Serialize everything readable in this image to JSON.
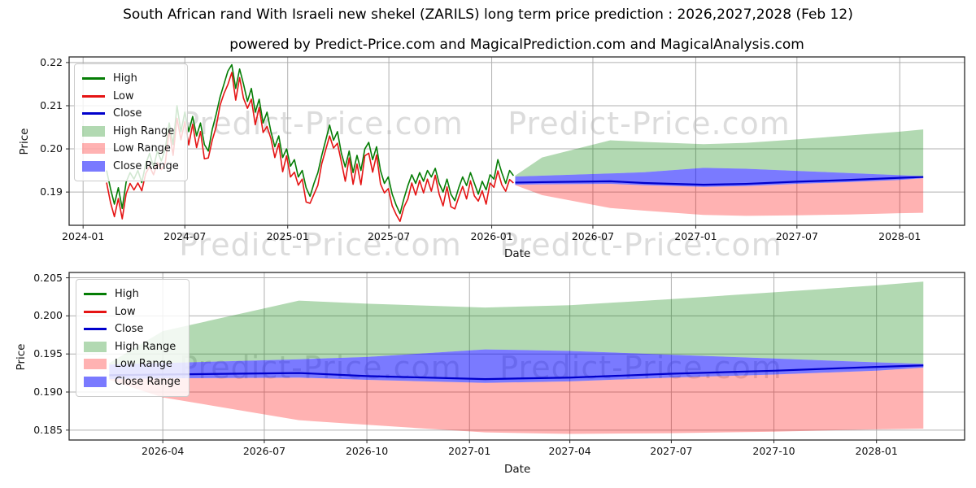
{
  "figure": {
    "title": "South African rand With Israeli new shekel (ZARILS) long term price prediction : 2026,2027,2028 (Feb 12)",
    "subtitle": "powered by Predict-Price.com and MagicalPrediction.com and MagicalAnalysis.com",
    "watermark_text": "Predict-Price.com"
  },
  "colors": {
    "high_line": "#057d05",
    "low_line": "#e51414",
    "close_line": "#0000cc",
    "high_range_fill": "rgba(0,128,0,0.30)",
    "low_range_fill": "rgba(255,0,0,0.30)",
    "close_range_fill": "rgba(0,0,255,0.52)",
    "grid": "#b0b0b0",
    "frame": "#2a2a2a",
    "watermark": "rgba(128,128,128,0.28)"
  },
  "legend": {
    "entries": [
      {
        "label": "High",
        "swatch": "line",
        "color_key": "high_line"
      },
      {
        "label": "Low",
        "swatch": "line",
        "color_key": "low_line"
      },
      {
        "label": "Close",
        "swatch": "line",
        "color_key": "close_line"
      },
      {
        "label": "High Range",
        "swatch": "patch",
        "color_key": "high_range_fill"
      },
      {
        "label": "Low Range",
        "swatch": "patch",
        "color_key": "low_range_fill"
      },
      {
        "label": "Close Range",
        "swatch": "patch",
        "color_key": "close_range_fill"
      }
    ]
  },
  "chart_data": [
    {
      "type": "line",
      "name": "history-plus-prediction",
      "xlabel": "Date",
      "ylabel": "Price",
      "x_unit": "days since 2024-01-01",
      "grid": true,
      "xticks": {
        "days": [
          0,
          182,
          366,
          547,
          731,
          912,
          1096,
          1277,
          1461
        ],
        "labels": [
          "2024-01",
          "2024-07",
          "2025-01",
          "2025-07",
          "2026-01",
          "2026-07",
          "2027-01",
          "2027-07",
          "2028-01"
        ]
      },
      "yticks": {
        "values": [
          0.19,
          0.2,
          0.21,
          0.22
        ],
        "labels": [
          "0.19",
          "0.20",
          "0.21",
          "0.22"
        ]
      },
      "x_range_days": [
        -25,
        1577
      ],
      "y_range": [
        0.1823,
        0.2213
      ],
      "history": {
        "start_day": 42,
        "step_days": 7,
        "high": [
          0.195,
          0.1908,
          0.1872,
          0.191,
          0.1862,
          0.1923,
          0.1945,
          0.193,
          0.195,
          0.1922,
          0.1965,
          0.199,
          0.1958,
          0.1995,
          0.1972,
          0.2,
          0.206,
          0.201,
          0.21,
          0.204,
          0.2085,
          0.204,
          0.2075,
          0.203,
          0.206,
          0.201,
          0.1995,
          0.2045,
          0.208,
          0.212,
          0.215,
          0.218,
          0.2195,
          0.214,
          0.2185,
          0.215,
          0.211,
          0.214,
          0.2085,
          0.2115,
          0.206,
          0.2085,
          0.204,
          0.2005,
          0.203,
          0.198,
          0.2,
          0.196,
          0.1975,
          0.1935,
          0.195,
          0.191,
          0.189,
          0.192,
          0.1945,
          0.1985,
          0.202,
          0.2055,
          0.202,
          0.204,
          0.199,
          0.1958,
          0.1995,
          0.1945,
          0.1985,
          0.195,
          0.2,
          0.2015,
          0.1975,
          0.2005,
          0.195,
          0.192,
          0.1935,
          0.1895,
          0.187,
          0.185,
          0.1885,
          0.1915,
          0.194,
          0.192,
          0.1945,
          0.1925,
          0.195,
          0.1935,
          0.1955,
          0.192,
          0.19,
          0.193,
          0.1895,
          0.188,
          0.191,
          0.1935,
          0.1915,
          0.1945,
          0.192,
          0.1895,
          0.1925,
          0.1905,
          0.194,
          0.193,
          0.1975,
          0.1945,
          0.192,
          0.195,
          0.1938
        ],
        "low": [
          0.1922,
          0.1876,
          0.1843,
          0.1885,
          0.1838,
          0.1896,
          0.192,
          0.1905,
          0.1921,
          0.1903,
          0.1943,
          0.1959,
          0.194,
          0.1968,
          0.1952,
          0.1967,
          0.2044,
          0.1985,
          0.2071,
          0.2021,
          0.2063,
          0.2009,
          0.2057,
          0.2003,
          0.204,
          0.1977,
          0.1979,
          0.202,
          0.2051,
          0.2101,
          0.2128,
          0.2149,
          0.2177,
          0.2113,
          0.2165,
          0.2117,
          0.2094,
          0.2115,
          0.2056,
          0.2096,
          0.2038,
          0.2052,
          0.2024,
          0.198,
          0.2012,
          0.1947,
          0.1984,
          0.1935,
          0.1946,
          0.1916,
          0.193,
          0.1877,
          0.1874,
          0.1895,
          0.1916,
          0.1966,
          0.1998,
          0.203,
          0.2002,
          0.2013,
          0.197,
          0.1925,
          0.1979,
          0.1918,
          0.1965,
          0.1917,
          0.1984,
          0.199,
          0.1946,
          0.1986,
          0.1919,
          0.1898,
          0.1908,
          0.1868,
          0.1848,
          0.1832,
          0.1865,
          0.1884,
          0.1921,
          0.1893,
          0.1927,
          0.1898,
          0.193,
          0.1902,
          0.1939,
          0.1895,
          0.1868,
          0.1912,
          0.1866,
          0.1861,
          0.1888,
          0.1913,
          0.1884,
          0.1926,
          0.1891,
          0.1879,
          0.1903,
          0.1872,
          0.1921,
          0.1911,
          0.1949,
          0.1917,
          0.1902,
          0.1929,
          0.1921
        ]
      },
      "prediction": {
        "days": [
          773,
          821,
          943,
          1004,
          1110,
          1186,
          1277,
          1369,
          1461,
          1503
        ],
        "high_range_top": [
          0.1938,
          0.198,
          0.202,
          0.2016,
          0.2011,
          0.2014,
          0.2022,
          0.2031,
          0.204,
          0.2045
        ],
        "close_range_top": [
          0.1936,
          0.1938,
          0.1943,
          0.1946,
          0.1956,
          0.1954,
          0.1949,
          0.1944,
          0.1939,
          0.1937
        ],
        "close": [
          0.1922,
          0.1923,
          0.1925,
          0.1921,
          0.1917,
          0.1919,
          0.1924,
          0.1928,
          0.1933,
          0.1935
        ],
        "close_range_bottom": [
          0.1917,
          0.1918,
          0.1919,
          0.1916,
          0.1912,
          0.1914,
          0.1919,
          0.1923,
          0.1928,
          0.1932
        ],
        "low_range_bottom": [
          0.1916,
          0.1893,
          0.1863,
          0.1857,
          0.1847,
          0.1845,
          0.1846,
          0.1848,
          0.1851,
          0.1852
        ]
      }
    },
    {
      "type": "line",
      "name": "prediction-zoom",
      "xlabel": "Date",
      "ylabel": "Price",
      "x_unit": "days since 2024-01-01",
      "grid": true,
      "xticks": {
        "days": [
          821,
          912,
          1004,
          1096,
          1186,
          1277,
          1369,
          1461
        ],
        "labels": [
          "2026-04",
          "2026-07",
          "2026-10",
          "2027-01",
          "2027-04",
          "2027-07",
          "2027-10",
          "2028-01"
        ]
      },
      "yticks": {
        "values": [
          0.185,
          0.19,
          0.195,
          0.2,
          0.205
        ],
        "labels": [
          "0.185",
          "0.190",
          "0.195",
          "0.200",
          "0.205"
        ]
      },
      "x_range_days": [
        737,
        1540
      ],
      "y_range": [
        0.1837,
        0.2057
      ],
      "prediction": {
        "days": [
          773,
          821,
          943,
          1004,
          1110,
          1186,
          1277,
          1369,
          1461,
          1503
        ],
        "high_range_top": [
          0.1938,
          0.198,
          0.202,
          0.2016,
          0.2011,
          0.2014,
          0.2022,
          0.2031,
          0.204,
          0.2045
        ],
        "close_range_top": [
          0.1936,
          0.1938,
          0.1943,
          0.1946,
          0.1956,
          0.1954,
          0.1949,
          0.1944,
          0.1939,
          0.1937
        ],
        "close": [
          0.1922,
          0.1923,
          0.1925,
          0.1921,
          0.1917,
          0.1919,
          0.1924,
          0.1928,
          0.1933,
          0.1935
        ],
        "close_range_bottom": [
          0.1917,
          0.1918,
          0.1919,
          0.1916,
          0.1912,
          0.1914,
          0.1919,
          0.1923,
          0.1928,
          0.1932
        ],
        "low_range_bottom": [
          0.1916,
          0.1893,
          0.1863,
          0.1857,
          0.1847,
          0.1845,
          0.1846,
          0.1848,
          0.1851,
          0.1852
        ]
      }
    }
  ]
}
